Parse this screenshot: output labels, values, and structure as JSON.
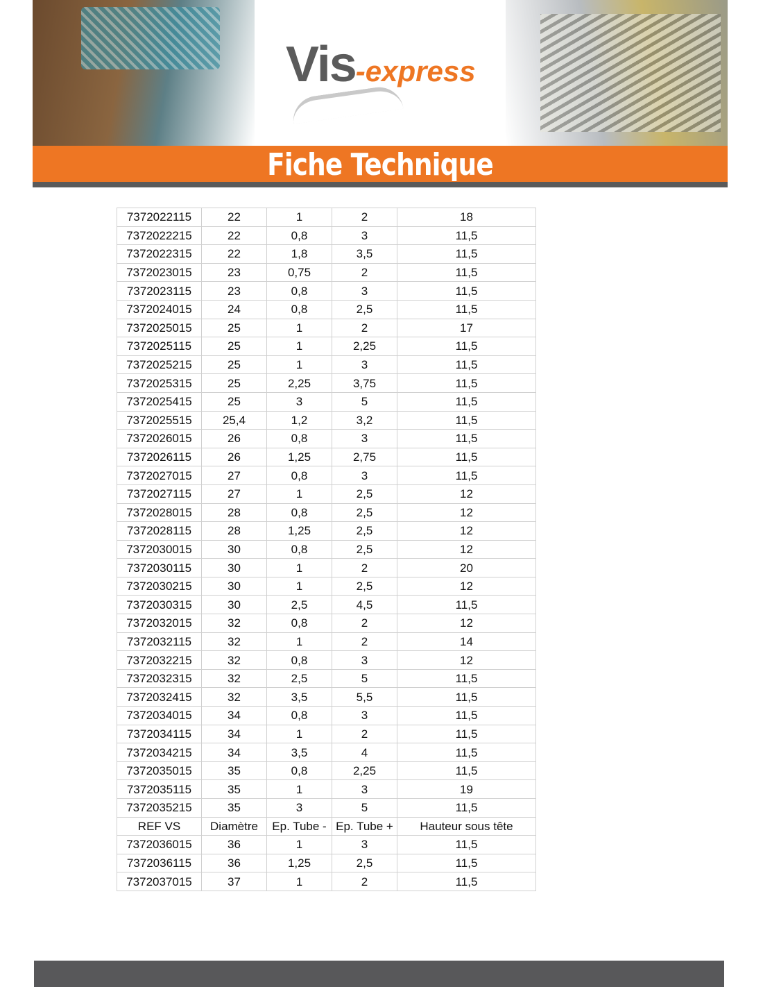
{
  "brand": {
    "name_part1": "Vis",
    "name_part2": "-express",
    "accent": "#ee7623",
    "gray": "#5a5a5a"
  },
  "banner_title": "Fiche Technique",
  "table": {
    "columns": [
      "REF VS",
      "Diamètre",
      "Ep. Tube -",
      "Ep. Tube +",
      "Hauteur sous tête"
    ],
    "rows_before_header": [
      [
        "7372022115",
        "22",
        "1",
        "2",
        "18"
      ],
      [
        "7372022215",
        "22",
        "0,8",
        "3",
        "11,5"
      ],
      [
        "7372022315",
        "22",
        "1,8",
        "3,5",
        "11,5"
      ],
      [
        "7372023015",
        "23",
        "0,75",
        "2",
        "11,5"
      ],
      [
        "7372023115",
        "23",
        "0,8",
        "3",
        "11,5"
      ],
      [
        "7372024015",
        "24",
        "0,8",
        "2,5",
        "11,5"
      ],
      [
        "7372025015",
        "25",
        "1",
        "2",
        "17"
      ],
      [
        "7372025115",
        "25",
        "1",
        "2,25",
        "11,5"
      ],
      [
        "7372025215",
        "25",
        "1",
        "3",
        "11,5"
      ],
      [
        "7372025315",
        "25",
        "2,25",
        "3,75",
        "11,5"
      ],
      [
        "7372025415",
        "25",
        "3",
        "5",
        "11,5"
      ],
      [
        "7372025515",
        "25,4",
        "1,2",
        "3,2",
        "11,5"
      ],
      [
        "7372026015",
        "26",
        "0,8",
        "3",
        "11,5"
      ],
      [
        "7372026115",
        "26",
        "1,25",
        "2,75",
        "11,5"
      ],
      [
        "7372027015",
        "27",
        "0,8",
        "3",
        "11,5"
      ],
      [
        "7372027115",
        "27",
        "1",
        "2,5",
        "12"
      ],
      [
        "7372028015",
        "28",
        "0,8",
        "2,5",
        "12"
      ],
      [
        "7372028115",
        "28",
        "1,25",
        "2,5",
        "12"
      ],
      [
        "7372030015",
        "30",
        "0,8",
        "2,5",
        "12"
      ],
      [
        "7372030115",
        "30",
        "1",
        "2",
        "20"
      ],
      [
        "7372030215",
        "30",
        "1",
        "2,5",
        "12"
      ],
      [
        "7372030315",
        "30",
        "2,5",
        "4,5",
        "11,5"
      ],
      [
        "7372032015",
        "32",
        "0,8",
        "2",
        "12"
      ],
      [
        "7372032115",
        "32",
        "1",
        "2",
        "14"
      ],
      [
        "7372032215",
        "32",
        "0,8",
        "3",
        "12"
      ],
      [
        "7372032315",
        "32",
        "2,5",
        "5",
        "11,5"
      ],
      [
        "7372032415",
        "32",
        "3,5",
        "5,5",
        "11,5"
      ],
      [
        "7372034015",
        "34",
        "0,8",
        "3",
        "11,5"
      ],
      [
        "7372034115",
        "34",
        "1",
        "2",
        "11,5"
      ],
      [
        "7372034215",
        "34",
        "3,5",
        "4",
        "11,5"
      ],
      [
        "7372035015",
        "35",
        "0,8",
        "2,25",
        "11,5"
      ],
      [
        "7372035115",
        "35",
        "1",
        "3",
        "19"
      ],
      [
        "7372035215",
        "35",
        "3",
        "5",
        "11,5"
      ]
    ],
    "rows_after_header": [
      [
        "7372036015",
        "36",
        "1",
        "3",
        "11,5"
      ],
      [
        "7372036115",
        "36",
        "1,25",
        "2,5",
        "11,5"
      ],
      [
        "7372037015",
        "37",
        "1",
        "2",
        "11,5"
      ]
    ]
  }
}
